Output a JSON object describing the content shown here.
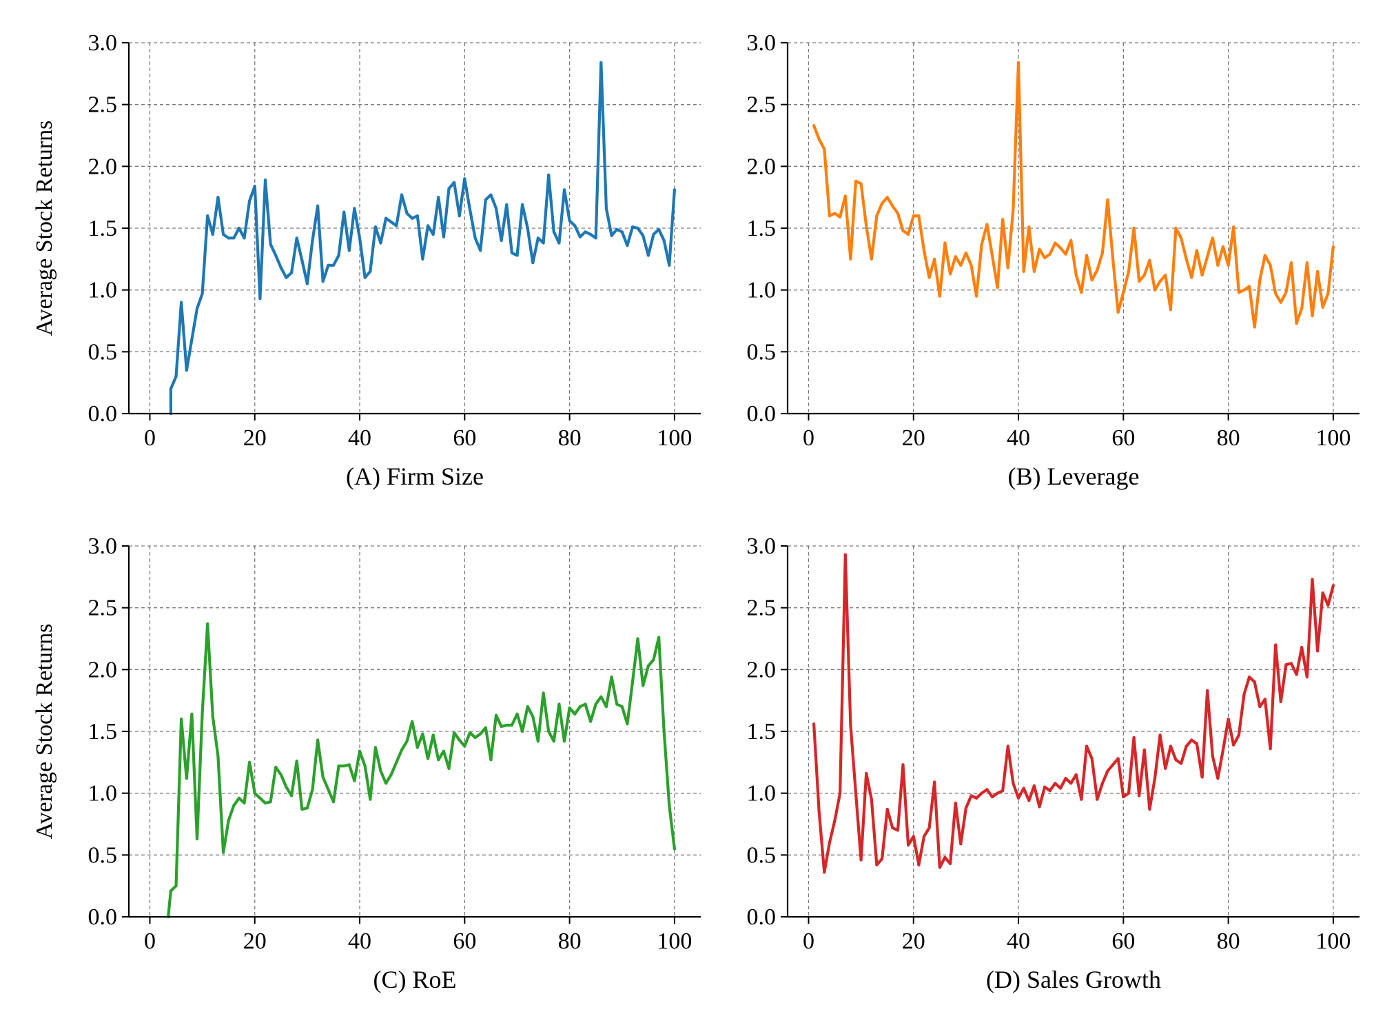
{
  "figure": {
    "ylabel": "Average Stock Returns"
  },
  "chart_data": [
    {
      "type": "line",
      "title": "(A) Firm Size",
      "xlabel": "(A) Firm Size",
      "ylabel": "Average Stock Returns",
      "xlim": [
        -4,
        105
      ],
      "ylim": [
        0,
        3.0
      ],
      "xticks": [
        0,
        20,
        40,
        60,
        80,
        100
      ],
      "yticks": [
        0.0,
        0.5,
        1.0,
        1.5,
        2.0,
        2.5,
        3.0
      ],
      "grid": true,
      "color": "#1f77b4",
      "series": [
        {
          "x": [
            4,
            4,
            5,
            6,
            7,
            8,
            9,
            10,
            11,
            12,
            13,
            14,
            15,
            16,
            17,
            18,
            19,
            20,
            21,
            22,
            23,
            24,
            25,
            26,
            27,
            28,
            29,
            30,
            31,
            32,
            33,
            34,
            35,
            36,
            37,
            38,
            39,
            40,
            41,
            42,
            43,
            44,
            45,
            46,
            47,
            48,
            49,
            50,
            51,
            52,
            53,
            54,
            55,
            56,
            57,
            58,
            59,
            60,
            61,
            62,
            63,
            64,
            65,
            66,
            67,
            68,
            69,
            70,
            71,
            72,
            73,
            74,
            75,
            76,
            77,
            78,
            79,
            80,
            81,
            82,
            83,
            84,
            85,
            86,
            87,
            88,
            89,
            90,
            91,
            92,
            93,
            94,
            95,
            96,
            97,
            98,
            99,
            100
          ],
          "values": [
            0.0,
            0.2,
            0.3,
            0.9,
            0.35,
            0.6,
            0.85,
            0.97,
            1.6,
            1.45,
            1.75,
            1.45,
            1.42,
            1.42,
            1.5,
            1.42,
            1.72,
            1.84,
            0.93,
            1.89,
            1.37,
            1.28,
            1.18,
            1.1,
            1.14,
            1.42,
            1.24,
            1.05,
            1.4,
            1.68,
            1.07,
            1.2,
            1.2,
            1.28,
            1.63,
            1.32,
            1.66,
            1.42,
            1.1,
            1.15,
            1.51,
            1.38,
            1.58,
            1.55,
            1.52,
            1.77,
            1.62,
            1.58,
            1.6,
            1.25,
            1.52,
            1.45,
            1.75,
            1.43,
            1.82,
            1.87,
            1.6,
            1.9,
            1.65,
            1.42,
            1.32,
            1.73,
            1.77,
            1.66,
            1.4,
            1.69,
            1.3,
            1.28,
            1.69,
            1.5,
            1.22,
            1.42,
            1.38,
            1.93,
            1.47,
            1.38,
            1.81,
            1.56,
            1.52,
            1.43,
            1.47,
            1.45,
            1.42,
            2.84,
            1.66,
            1.44,
            1.49,
            1.47,
            1.36,
            1.51,
            1.5,
            1.44,
            1.28,
            1.45,
            1.49,
            1.4,
            1.2,
            1.81
          ]
        }
      ]
    },
    {
      "type": "line",
      "title": "(B) Leverage",
      "xlabel": "(B) Leverage",
      "ylabel": "",
      "xlim": [
        -4,
        105
      ],
      "ylim": [
        0,
        3.0
      ],
      "xticks": [
        0,
        20,
        40,
        60,
        80,
        100
      ],
      "yticks": [
        0.0,
        0.5,
        1.0,
        1.5,
        2.0,
        2.5,
        3.0
      ],
      "grid": true,
      "color": "#ff7f0e",
      "series": [
        {
          "x": [
            1,
            2,
            3,
            4,
            5,
            6,
            7,
            8,
            9,
            10,
            11,
            12,
            13,
            14,
            15,
            16,
            17,
            18,
            19,
            20,
            21,
            22,
            23,
            24,
            25,
            26,
            27,
            28,
            29,
            30,
            31,
            32,
            33,
            34,
            35,
            36,
            37,
            38,
            39,
            40,
            41,
            42,
            43,
            44,
            45,
            46,
            47,
            48,
            49,
            50,
            51,
            52,
            53,
            54,
            55,
            56,
            57,
            58,
            59,
            60,
            61,
            62,
            63,
            64,
            65,
            66,
            67,
            68,
            69,
            70,
            71,
            72,
            73,
            74,
            75,
            76,
            77,
            78,
            79,
            80,
            81,
            82,
            83,
            84,
            85,
            86,
            87,
            88,
            89,
            90,
            91,
            92,
            93,
            94,
            95,
            96,
            97,
            98,
            99,
            100
          ],
          "values": [
            2.33,
            2.22,
            2.14,
            1.6,
            1.62,
            1.59,
            1.76,
            1.25,
            1.88,
            1.86,
            1.52,
            1.25,
            1.6,
            1.7,
            1.75,
            1.68,
            1.62,
            1.48,
            1.45,
            1.6,
            1.6,
            1.32,
            1.1,
            1.25,
            0.95,
            1.38,
            1.13,
            1.27,
            1.2,
            1.3,
            1.2,
            0.95,
            1.37,
            1.53,
            1.28,
            1.02,
            1.57,
            1.18,
            1.65,
            2.84,
            1.15,
            1.51,
            1.15,
            1.33,
            1.26,
            1.29,
            1.38,
            1.34,
            1.29,
            1.4,
            1.12,
            0.98,
            1.28,
            1.08,
            1.16,
            1.3,
            1.73,
            1.25,
            0.82,
            0.98,
            1.15,
            1.5,
            1.07,
            1.12,
            1.24,
            1.0,
            1.07,
            1.12,
            0.84,
            1.5,
            1.42,
            1.25,
            1.1,
            1.32,
            1.12,
            1.27,
            1.42,
            1.2,
            1.35,
            1.2,
            1.51,
            0.98,
            1.0,
            1.03,
            0.7,
            1.08,
            1.28,
            1.2,
            0.97,
            0.9,
            0.98,
            1.22,
            0.73,
            0.85,
            1.22,
            0.79,
            1.15,
            0.86,
            0.97,
            1.35
          ]
        }
      ]
    },
    {
      "type": "line",
      "title": "(C) RoE",
      "xlabel": "(C) RoE",
      "ylabel": "Average Stock Returns",
      "xlim": [
        -4,
        105
      ],
      "ylim": [
        0,
        3.0
      ],
      "xticks": [
        0,
        20,
        40,
        60,
        80,
        100
      ],
      "yticks": [
        0.0,
        0.5,
        1.0,
        1.5,
        2.0,
        2.5,
        3.0
      ],
      "grid": true,
      "color": "#2ca02c",
      "series": [
        {
          "x": [
            3.5,
            4,
            5,
            6,
            7,
            8,
            9,
            10,
            11,
            12,
            13,
            14,
            15,
            16,
            17,
            18,
            19,
            20,
            21,
            22,
            23,
            24,
            25,
            26,
            27,
            28,
            29,
            30,
            31,
            32,
            33,
            34,
            35,
            36,
            37,
            38,
            39,
            40,
            41,
            42,
            43,
            44,
            45,
            46,
            47,
            48,
            49,
            50,
            51,
            52,
            53,
            54,
            55,
            56,
            57,
            58,
            59,
            60,
            61,
            62,
            63,
            64,
            65,
            66,
            67,
            68,
            69,
            70,
            71,
            72,
            73,
            74,
            75,
            76,
            77,
            78,
            79,
            80,
            81,
            82,
            83,
            84,
            85,
            86,
            87,
            88,
            89,
            90,
            91,
            92,
            93,
            94,
            95,
            96,
            97,
            98,
            99,
            100
          ],
          "values": [
            0.0,
            0.21,
            0.25,
            1.6,
            1.12,
            1.64,
            0.63,
            1.65,
            2.37,
            1.62,
            1.3,
            0.52,
            0.78,
            0.9,
            0.96,
            0.92,
            1.25,
            1.0,
            0.96,
            0.92,
            0.93,
            1.21,
            1.15,
            1.05,
            0.98,
            1.26,
            0.87,
            0.88,
            1.03,
            1.43,
            1.13,
            1.03,
            0.93,
            1.22,
            1.22,
            1.23,
            1.1,
            1.34,
            1.22,
            0.95,
            1.37,
            1.18,
            1.08,
            1.15,
            1.25,
            1.35,
            1.42,
            1.58,
            1.37,
            1.48,
            1.28,
            1.47,
            1.27,
            1.34,
            1.2,
            1.49,
            1.43,
            1.38,
            1.49,
            1.45,
            1.48,
            1.53,
            1.27,
            1.63,
            1.54,
            1.55,
            1.55,
            1.64,
            1.5,
            1.7,
            1.62,
            1.42,
            1.81,
            1.5,
            1.42,
            1.72,
            1.42,
            1.69,
            1.64,
            1.7,
            1.72,
            1.58,
            1.72,
            1.78,
            1.7,
            1.94,
            1.72,
            1.7,
            1.56,
            1.9,
            2.25,
            1.87,
            2.03,
            2.08,
            2.26,
            1.5,
            0.9,
            0.55
          ]
        }
      ]
    },
    {
      "type": "line",
      "title": "(D) Sales Growth",
      "xlabel": "(D) Sales Growth",
      "ylabel": "",
      "xlim": [
        -4,
        105
      ],
      "ylim": [
        0,
        3.0
      ],
      "xticks": [
        0,
        20,
        40,
        60,
        80,
        100
      ],
      "yticks": [
        0.0,
        0.5,
        1.0,
        1.5,
        2.0,
        2.5,
        3.0
      ],
      "grid": true,
      "color": "#d62728",
      "series": [
        {
          "x": [
            1,
            2,
            3,
            4,
            5,
            6,
            7,
            8,
            9,
            10,
            11,
            12,
            13,
            14,
            15,
            16,
            17,
            18,
            19,
            20,
            21,
            22,
            23,
            24,
            25,
            26,
            27,
            28,
            29,
            30,
            31,
            32,
            33,
            34,
            35,
            36,
            37,
            38,
            39,
            40,
            41,
            42,
            43,
            44,
            45,
            46,
            47,
            48,
            49,
            50,
            51,
            52,
            53,
            54,
            55,
            56,
            57,
            58,
            59,
            60,
            61,
            62,
            63,
            64,
            65,
            66,
            67,
            68,
            69,
            70,
            71,
            72,
            73,
            74,
            75,
            76,
            77,
            78,
            79,
            80,
            81,
            82,
            83,
            84,
            85,
            86,
            87,
            88,
            89,
            90,
            91,
            92,
            93,
            94,
            95,
            96,
            97,
            98,
            99,
            100
          ],
          "values": [
            1.56,
            0.85,
            0.36,
            0.6,
            0.78,
            1.0,
            2.93,
            1.55,
            1.0,
            0.46,
            1.16,
            0.95,
            0.42,
            0.47,
            0.87,
            0.72,
            0.7,
            1.23,
            0.58,
            0.65,
            0.42,
            0.65,
            0.72,
            1.09,
            0.4,
            0.48,
            0.43,
            0.92,
            0.59,
            0.88,
            0.98,
            0.96,
            1.0,
            1.03,
            0.97,
            1.0,
            1.02,
            1.38,
            1.08,
            0.96,
            1.04,
            0.94,
            1.06,
            0.89,
            1.05,
            1.02,
            1.08,
            1.04,
            1.12,
            1.08,
            1.15,
            0.95,
            1.38,
            1.28,
            0.95,
            1.08,
            1.18,
            1.23,
            1.28,
            0.97,
            1.0,
            1.45,
            0.98,
            1.35,
            0.87,
            1.12,
            1.47,
            1.2,
            1.38,
            1.27,
            1.24,
            1.38,
            1.43,
            1.4,
            1.13,
            1.83,
            1.3,
            1.12,
            1.35,
            1.6,
            1.39,
            1.47,
            1.8,
            1.94,
            1.9,
            1.7,
            1.76,
            1.36,
            2.2,
            1.74,
            2.04,
            2.05,
            1.96,
            2.18,
            1.94,
            2.73,
            2.15,
            2.62,
            2.52,
            2.68
          ]
        }
      ]
    }
  ]
}
